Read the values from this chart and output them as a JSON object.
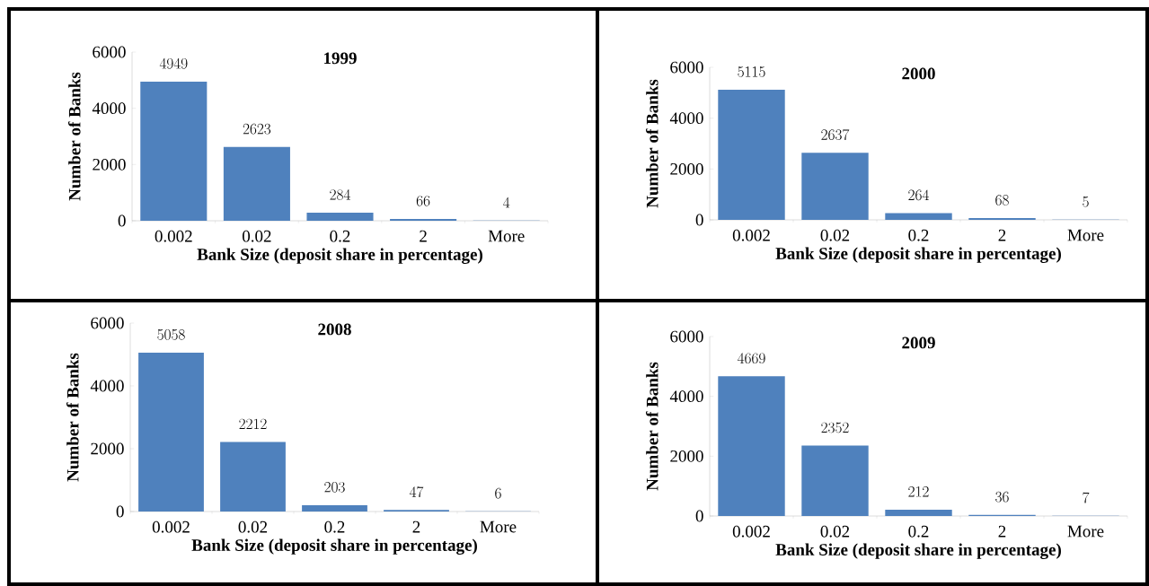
{
  "chart_data": [
    {
      "type": "bar",
      "title": "1999",
      "xlabel": "Bank Size (deposit share in percentage)",
      "ylabel": "Number of Banks",
      "categories": [
        "0.002",
        "0.02",
        "0.2",
        "2",
        "More"
      ],
      "values": [
        4949,
        2623,
        284,
        66,
        4
      ],
      "color": "#4f81bd",
      "ylim": [
        0,
        6000
      ],
      "yticks": [
        0,
        2000,
        4000,
        6000
      ],
      "data_labels": true
    },
    {
      "type": "bar",
      "title": "2000",
      "xlabel": "Bank Size (deposit share in percentage)",
      "ylabel": "Number of Banks",
      "categories": [
        "0.002",
        "0.02",
        "0.2",
        "2",
        "More"
      ],
      "values": [
        5115,
        2637,
        264,
        68,
        5
      ],
      "color": "#4f81bd",
      "ylim": [
        0,
        6000
      ],
      "yticks": [
        0,
        2000,
        4000,
        6000
      ],
      "data_labels": true
    },
    {
      "type": "bar",
      "title": "2008",
      "xlabel": "Bank Size (deposit share in percentage)",
      "ylabel": "Number of Banks",
      "categories": [
        "0.002",
        "0.02",
        "0.2",
        "2",
        "More"
      ],
      "values": [
        5058,
        2212,
        203,
        47,
        6
      ],
      "color": "#4f81bd",
      "ylim": [
        0,
        6000
      ],
      "yticks": [
        0,
        2000,
        4000,
        6000
      ],
      "data_labels": true
    },
    {
      "type": "bar",
      "title": "2009",
      "xlabel": "Bank Size (deposit share in percentage)",
      "ylabel": "Number of Banks",
      "categories": [
        "0.002",
        "0.02",
        "0.2",
        "2",
        "More"
      ],
      "values": [
        4669,
        2352,
        212,
        36,
        7
      ],
      "color": "#4f81bd",
      "ylim": [
        0,
        6000
      ],
      "yticks": [
        0,
        2000,
        4000,
        6000
      ],
      "data_labels": true
    }
  ]
}
